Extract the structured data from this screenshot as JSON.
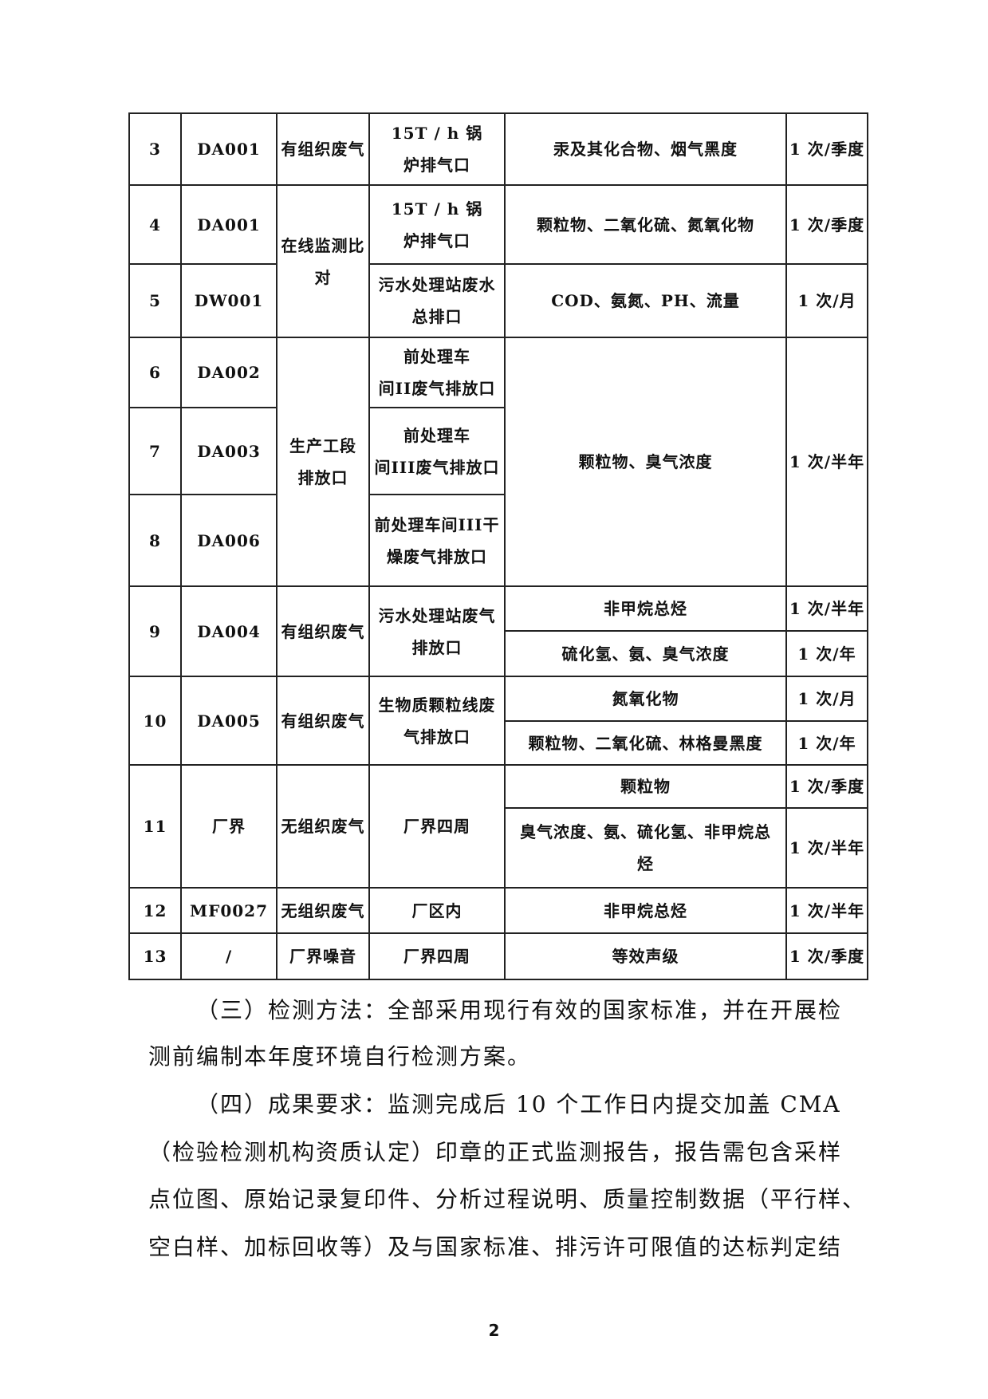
{
  "table": {
    "rows": [
      {
        "no": "3",
        "code": "DA001",
        "type": "有组织废气",
        "outlet": "15T / h 锅\n炉排气口",
        "items": "汞及其化合物、烟气黑度",
        "freq": "1 次/季度"
      },
      {
        "no": "4",
        "code": "DA001",
        "type": "在线监测比\n对",
        "outlet": "15T / h 锅\n炉排气口",
        "items": "颗粒物、二氧化硫、氮氧化物",
        "freq": "1 次/季度"
      },
      {
        "no": "5",
        "code": "DW001",
        "outlet": "污水处理站废水\n总排口",
        "items": "COD、氨氮、PH、流量",
        "freq": "1 次/月"
      },
      {
        "no": "6",
        "code": "DA002",
        "type": "生产工段\n排放口",
        "outlet": "前处理车\n间II废气排放口",
        "items": "颗粒物、臭气浓度",
        "freq": "1 次/半年"
      },
      {
        "no": "7",
        "code": "DA003",
        "outlet": "前处理车\n间III废气排放口"
      },
      {
        "no": "8",
        "code": "DA006",
        "outlet": "前处理车间III干\n燥废气排放口"
      },
      {
        "no": "9",
        "code": "DA004",
        "type": "有组织废气",
        "outlet": "污水处理站废气\n排放口",
        "items": "非甲烷总烃",
        "freq": "1 次/半年"
      },
      {
        "items": "硫化氢、氨、臭气浓度",
        "freq": "1 次/年"
      },
      {
        "no": "10",
        "code": "DA005",
        "type": "有组织废气",
        "outlet": "生物质颗粒线废\n气排放口",
        "items": "氮氧化物",
        "freq": "1 次/月"
      },
      {
        "items": "颗粒物、二氧化硫、林格曼黑度",
        "freq": "1 次/年"
      },
      {
        "no": "11",
        "code": "厂界",
        "type": "无组织废气",
        "outlet": "厂界四周",
        "items": "颗粒物",
        "freq": "1 次/季度"
      },
      {
        "items": "臭气浓度、氨、硫化氢、非甲烷总\n烃",
        "freq": "1 次/半年"
      },
      {
        "no": "12",
        "code": "MF0027",
        "type": "无组织废气",
        "outlet": "厂区内",
        "items": "非甲烷总烃",
        "freq": "1 次/半年"
      },
      {
        "no": "13",
        "code": "/",
        "type": "厂界噪音",
        "outlet": "厂界四周",
        "items": "等效声级",
        "freq": "1 次/季度"
      }
    ]
  },
  "paragraphs": [
    "（三）检测方法：全部采用现行有效的国家标准，并在开展检",
    "测前编制本年度环境自行检测方案。",
    "（四）成果要求：监测完成后 10 个工作日内提交加盖 CMA",
    "（检验检测机构资质认定）印章的正式监测报告，报告需包含采样",
    "点位图、原始记录复印件、分析过程说明、质量控制数据（平行样、",
    "空白样、加标回收等）及与国家标准、排污许可限值的达标判定结"
  ],
  "page_number": "2"
}
